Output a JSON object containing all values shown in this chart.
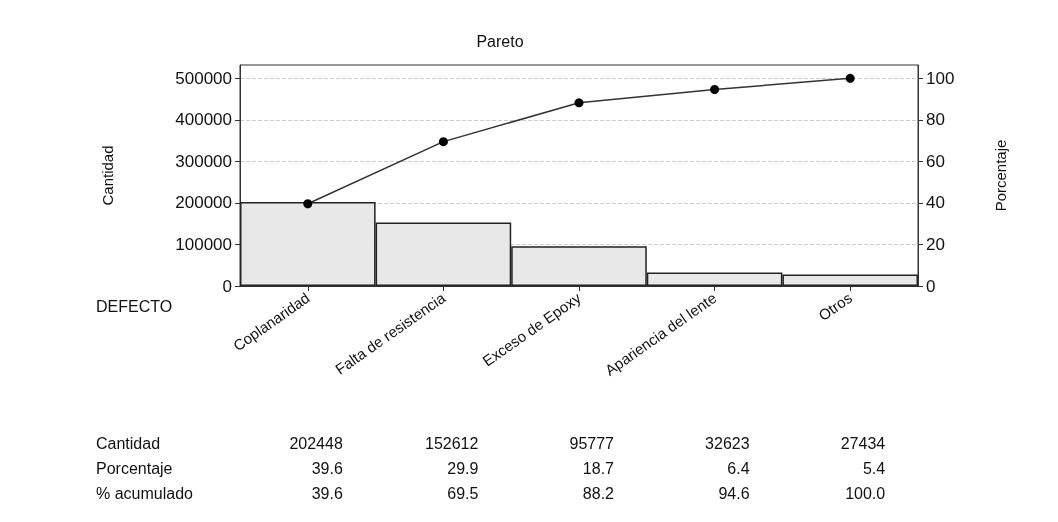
{
  "chart_data": {
    "type": "bar",
    "title": "Pareto",
    "xlabel": "DEFECTO",
    "ylabel": "Cantidad",
    "y2label": "Porcentaje",
    "categories": [
      "Coplanaridad",
      "Falta de resistencia",
      "Exceso de Epoxy",
      "Apariencia del lente",
      "Otros"
    ],
    "series": [
      {
        "color": "#e8e8e8",
        "values": [
          202448,
          152612,
          95777,
          32623,
          27434
        ]
      },
      {
        "type": "line",
        "axis": "y2",
        "color": "#333333",
        "values": [
          39.6,
          69.5,
          88.2,
          94.6,
          100.0
        ],
        "value_labels": [
          "39.6",
          "69.5",
          "88.2",
          "94.6",
          "100.0"
        ]
      }
    ],
    "data_labels": true,
    "annotations": [
      "Cantidad",
      "Porcentaje",
      "% acumulado",
      "39.6",
      "29.9",
      "18.7",
      "6.4",
      "5.4"
    ],
    "ylim": [
      0,
      532000
    ],
    "yticks": [
      0,
      100000,
      200000,
      300000,
      400000,
      500000
    ],
    "y2lim": [
      0,
      106.4
    ],
    "y2ticks": [
      0,
      20,
      40,
      60,
      80,
      100
    ],
    "grid": "y",
    "marker": "circle",
    "line_style": "solid"
  }
}
